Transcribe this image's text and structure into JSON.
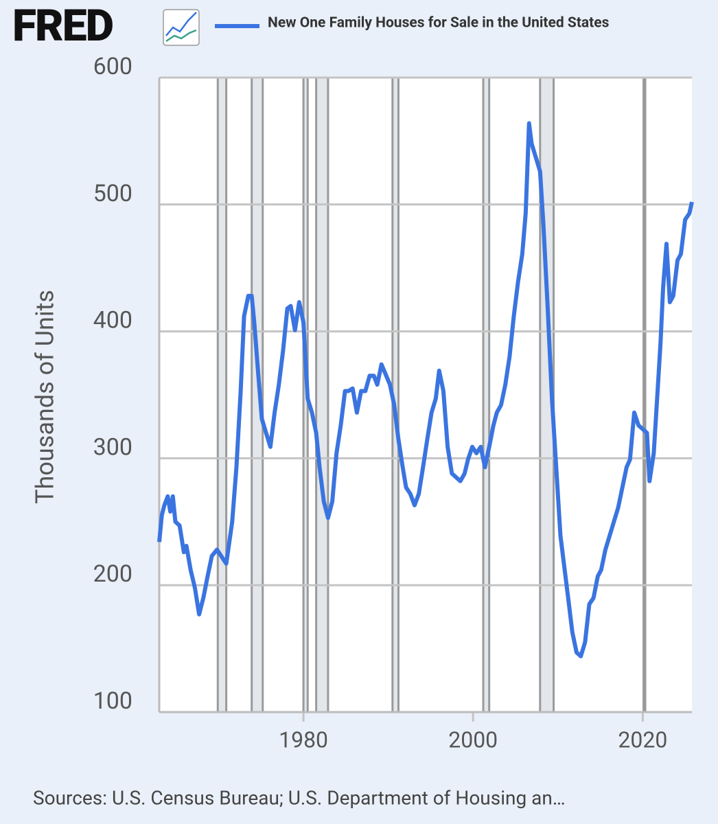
{
  "chart_data": {
    "type": "line",
    "logo": "FRED",
    "y_label": "Thousands of Units",
    "source": "Sources: U.S. Census Bureau; U.S. Department of Housing an…",
    "x": [
      1963.0,
      1963.3,
      1963.6,
      1964.0,
      1964.3,
      1964.6,
      1964.9,
      1965.4,
      1965.9,
      1966.2,
      1966.7,
      1967.2,
      1967.7,
      1968.2,
      1968.7,
      1969.2,
      1969.8,
      1970.3,
      1970.9,
      1971.6,
      1972.1,
      1972.6,
      1973.0,
      1973.5,
      1973.9,
      1974.2,
      1974.7,
      1975.1,
      1975.6,
      1976.1,
      1976.6,
      1977.1,
      1977.6,
      1978.1,
      1978.5,
      1979.0,
      1979.5,
      1980.0,
      1980.5,
      1981.0,
      1981.5,
      1981.9,
      1982.4,
      1982.9,
      1983.4,
      1983.9,
      1984.4,
      1984.9,
      1985.3,
      1985.8,
      1986.3,
      1986.8,
      1987.3,
      1987.8,
      1988.3,
      1988.7,
      1989.2,
      1989.7,
      1990.2,
      1990.7,
      1991.2,
      1991.7,
      1992.1,
      1992.6,
      1993.1,
      1993.6,
      1994.1,
      1994.6,
      1995.1,
      1995.6,
      1996.0,
      1996.5,
      1997.0,
      1997.5,
      1998.0,
      1998.5,
      1999.0,
      1999.4,
      1999.9,
      2000.4,
      2000.9,
      2001.4,
      2001.9,
      2002.4,
      2002.8,
      2003.3,
      2003.8,
      2004.3,
      2004.8,
      2005.3,
      2005.8,
      2006.2,
      2006.6,
      2006.9,
      2007.4,
      2007.9,
      2008.3,
      2008.8,
      2009.3,
      2009.8,
      2010.3,
      2010.8,
      2011.3,
      2011.7,
      2012.2,
      2012.7,
      2013.2,
      2013.7,
      2014.2,
      2014.7,
      2015.1,
      2015.6,
      2016.1,
      2016.6,
      2017.1,
      2017.6,
      2018.1,
      2018.5,
      2019.0,
      2019.5,
      2020.0,
      2020.5,
      2020.8,
      2021.3,
      2021.8,
      2022.1,
      2022.4,
      2022.8,
      2023.2,
      2023.6,
      2024.1,
      2024.5,
      2025.0,
      2025.5,
      2025.8
    ],
    "series": [
      {
        "name": "New One Family Houses for Sale in the United States",
        "color": "#3a74e0",
        "values": [
          234,
          255,
          263,
          270,
          258,
          270,
          250,
          247,
          226,
          231,
          212,
          198,
          177,
          190,
          207,
          223,
          228,
          223,
          217,
          250,
          293,
          353,
          412,
          428,
          428,
          407,
          364,
          331,
          320,
          309,
          336,
          358,
          385,
          418,
          420,
          401,
          423,
          407,
          347,
          336,
          320,
          293,
          266,
          253,
          266,
          304,
          326,
          353,
          353,
          355,
          336,
          353,
          353,
          365,
          365,
          358,
          374,
          366,
          358,
          342,
          315,
          293,
          277,
          272,
          263,
          272,
          293,
          315,
          336,
          347,
          369,
          353,
          309,
          288,
          285,
          282,
          288,
          299,
          309,
          304,
          309,
          293,
          309,
          326,
          336,
          342,
          358,
          380,
          412,
          439,
          461,
          493,
          564,
          548,
          537,
          526,
          483,
          418,
          347,
          293,
          239,
          212,
          185,
          163,
          147,
          144,
          155,
          185,
          190,
          207,
          212,
          228,
          239,
          250,
          261,
          277,
          293,
          299,
          336,
          326,
          323,
          320,
          282,
          304,
          358,
          391,
          434,
          469,
          423,
          428,
          456,
          461,
          488,
          493,
          502
        ]
      }
    ],
    "recessions": [
      [
        1969.9,
        1970.9
      ],
      [
        1973.9,
        1975.2
      ],
      [
        1980.0,
        1980.5
      ],
      [
        1981.5,
        1982.9
      ],
      [
        1990.5,
        1991.2
      ],
      [
        2001.2,
        2001.9
      ],
      [
        2007.9,
        2009.5
      ],
      [
        2020.1,
        2020.3
      ]
    ],
    "xlim": [
      1963.0,
      2025.8
    ],
    "xticks": [
      1980,
      2000,
      2020
    ],
    "ylim": [
      100,
      600
    ],
    "yticks": [
      100,
      200,
      300,
      400,
      500,
      600
    ],
    "grid": true
  }
}
